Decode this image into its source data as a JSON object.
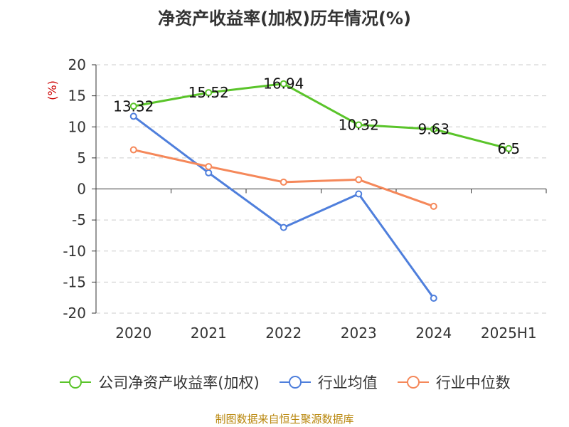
{
  "title": "净资产收益率(加权)历年情况(%)",
  "source": "制图数据来自恒生聚源数据库",
  "chart_data": {
    "type": "line",
    "title": "净资产收益率(加权)历年情况(%)",
    "categories": [
      "2020",
      "2021",
      "2022",
      "2023",
      "2024",
      "2025H1"
    ],
    "ylabel": "(%)",
    "ylim": [
      -20,
      20
    ],
    "yticks": [
      "20",
      "15",
      "10",
      "5",
      "0",
      "-5",
      "-10",
      "-15",
      "-20"
    ],
    "grid": true,
    "legend_position": "bottom",
    "series": [
      {
        "name": "公司净资产收益率(加权)",
        "color": "#5ac42a",
        "values": [
          13.32,
          15.52,
          16.94,
          10.32,
          9.63,
          6.5
        ],
        "labels": [
          "13.32",
          "15.52",
          "16.94",
          "10.32",
          "9.63",
          "6.5"
        ]
      },
      {
        "name": "行业均值",
        "color": "#4f7fdc",
        "values": [
          11.7,
          2.6,
          -6.2,
          -0.8,
          -17.6,
          null
        ]
      },
      {
        "name": "行业中位数",
        "color": "#f5885a",
        "values": [
          6.3,
          3.6,
          1.1,
          1.5,
          -2.8,
          null
        ]
      }
    ]
  }
}
